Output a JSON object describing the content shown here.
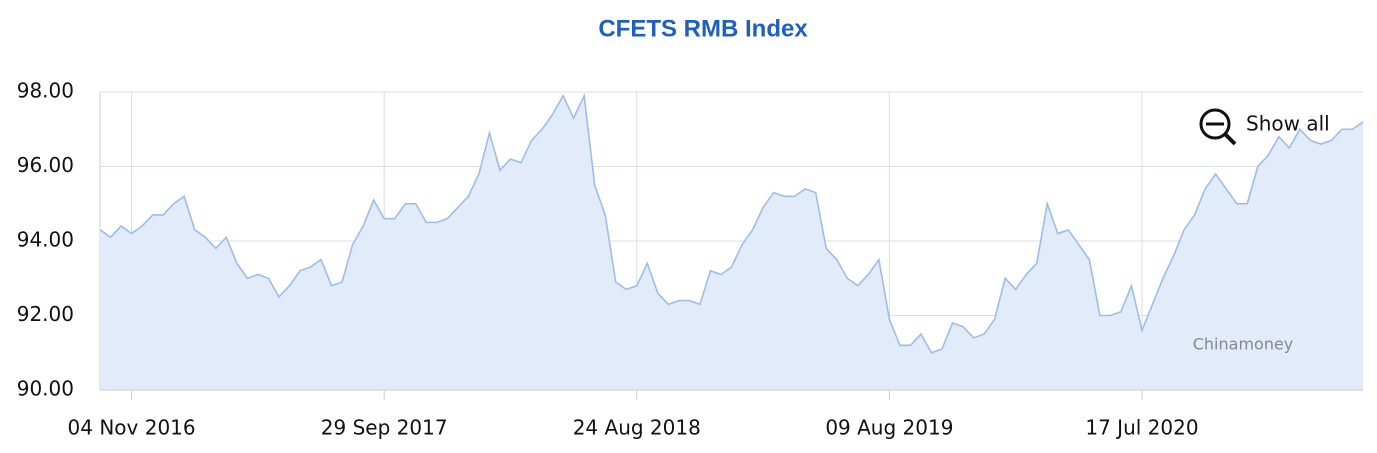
{
  "chart_data": {
    "type": "area",
    "title": "CFETS RMB Index",
    "show_all": "Show all",
    "credit": "Chinamoney",
    "color": "#9dbde9",
    "fill": "#e1ebfa",
    "grid": true,
    "categories": [
      null,
      null,
      null,
      "04 Nov 2016",
      null,
      null,
      null,
      null,
      null,
      null,
      null,
      null,
      null,
      null,
      null,
      null,
      null,
      null,
      null,
      null,
      null,
      null,
      null,
      null,
      null,
      null,
      null,
      "29 Sep 2017",
      null,
      null,
      null,
      null,
      null,
      null,
      null,
      null,
      null,
      null,
      null,
      null,
      null,
      null,
      null,
      null,
      null,
      null,
      null,
      null,
      null,
      null,
      null,
      "24 Aug 2018",
      null,
      null,
      null,
      null,
      null,
      null,
      null,
      null,
      null,
      null,
      null,
      null,
      null,
      null,
      null,
      null,
      null,
      null,
      null,
      null,
      null,
      null,
      null,
      "09 Aug 2019",
      null,
      null,
      null,
      null,
      null,
      null,
      null,
      null,
      null,
      null,
      null,
      null,
      null,
      null,
      null,
      null,
      null,
      null,
      null,
      null,
      null,
      null,
      null,
      "17 Jul 2020",
      null,
      null,
      null,
      null,
      null,
      null,
      null,
      null,
      null,
      null,
      null,
      null,
      null,
      null,
      null,
      null,
      null,
      null,
      null,
      null,
      null
    ],
    "values": [
      94.3,
      94.1,
      94.4,
      94.2,
      94.4,
      94.7,
      94.7,
      95.0,
      95.2,
      94.3,
      94.1,
      93.8,
      94.1,
      93.4,
      93.0,
      93.1,
      93.0,
      92.5,
      92.8,
      93.2,
      93.3,
      93.5,
      92.8,
      92.9,
      93.9,
      94.4,
      95.1,
      94.6,
      94.6,
      95.0,
      95.0,
      94.5,
      94.5,
      94.6,
      94.9,
      95.2,
      95.8,
      96.9,
      95.9,
      96.2,
      96.1,
      96.7,
      97.0,
      97.4,
      97.9,
      97.3,
      97.9,
      95.5,
      94.7,
      92.9,
      92.7,
      92.8,
      93.4,
      92.6,
      92.3,
      92.4,
      92.4,
      92.3,
      93.2,
      93.1,
      93.3,
      93.9,
      94.3,
      94.9,
      95.3,
      95.2,
      95.2,
      95.4,
      95.3,
      93.8,
      93.5,
      93.0,
      92.8,
      93.1,
      93.5,
      91.9,
      91.2,
      91.2,
      91.5,
      91.0,
      91.1,
      91.8,
      91.7,
      91.4,
      91.5,
      91.9,
      93.0,
      92.7,
      93.1,
      93.4,
      95.0,
      94.2,
      94.3,
      93.9,
      93.5,
      92.0,
      92.0,
      92.1,
      92.8,
      91.6,
      92.3,
      93.0,
      93.6,
      94.3,
      94.7,
      95.4,
      95.8,
      95.4,
      95.0,
      95.0,
      96.0,
      96.3,
      96.8,
      96.5,
      97.0,
      96.7,
      96.6,
      96.7,
      97.0,
      97.0,
      97.2
    ],
    "ylim": [
      90,
      98
    ],
    "yticks": [
      {
        "value": 90,
        "label": "90.00"
      },
      {
        "value": 92,
        "label": "92.00"
      },
      {
        "value": 94,
        "label": "94.00"
      },
      {
        "value": 96,
        "label": "96.00"
      },
      {
        "value": 98,
        "label": "98.00"
      }
    ]
  }
}
